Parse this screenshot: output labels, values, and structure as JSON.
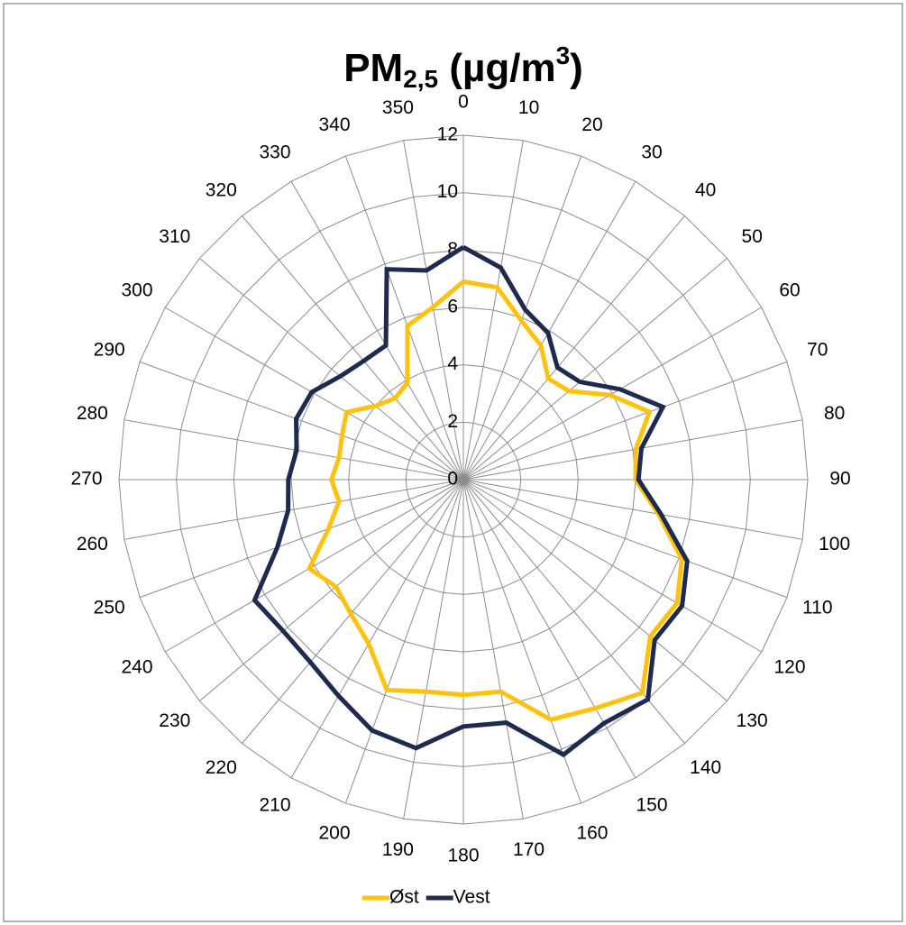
{
  "chart_data": {
    "type": "radar",
    "title": [
      "PM",
      "2,5",
      " (µg/m",
      "3",
      ")"
    ],
    "categories": [
      0,
      10,
      20,
      30,
      40,
      50,
      60,
      70,
      80,
      90,
      100,
      110,
      120,
      130,
      140,
      150,
      160,
      170,
      180,
      190,
      200,
      210,
      220,
      230,
      240,
      250,
      260,
      270,
      280,
      290,
      300,
      310,
      320,
      330,
      340,
      350
    ],
    "ylim": [
      0,
      12
    ],
    "yticks": [
      0,
      2,
      4,
      6,
      8,
      10,
      12
    ],
    "grid": true,
    "legend": "bottom",
    "series": [
      {
        "name": "Øst",
        "color": "#ffc20e",
        "values": [
          6.9,
          6.8,
          5.9,
          5.4,
          4.6,
          4.8,
          5.9,
          6.9,
          6.1,
          6.0,
          6.9,
          8.1,
          8.6,
          8.5,
          9.7,
          9.2,
          8.9,
          7.5,
          7.5,
          7.5,
          7.8,
          6.6,
          6.1,
          5.8,
          6.2,
          5.0,
          4.4,
          4.6,
          4.4,
          4.5,
          4.7,
          4.0,
          3.7,
          3.9,
          5.7,
          6.1
        ]
      },
      {
        "name": "Vest",
        "color": "#1f2a4f",
        "values": [
          8.1,
          7.5,
          6.3,
          5.9,
          5.1,
          5.3,
          6.3,
          7.4,
          6.3,
          6.1,
          7.0,
          8.3,
          8.8,
          8.7,
          10.0,
          9.8,
          10.2,
          8.6,
          8.6,
          9.5,
          9.3,
          8.7,
          8.3,
          8.2,
          8.4,
          6.9,
          6.2,
          6.1,
          5.9,
          6.2,
          6.1,
          5.6,
          5.4,
          5.4,
          7.8,
          7.4
        ]
      }
    ]
  }
}
